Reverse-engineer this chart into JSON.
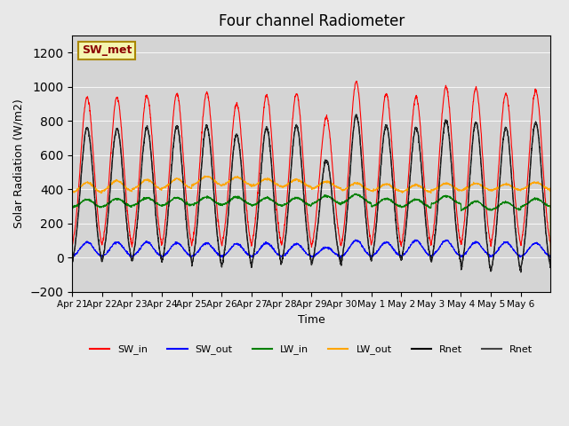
{
  "title": "Four channel Radiometer",
  "xlabel": "Time",
  "ylabel": "Solar Radiation (W/m2)",
  "ylim": [
    -200,
    1300
  ],
  "xlim_days": 15.5,
  "background_color": "#e8e8e8",
  "plot_bg_color": "#d8d8d8",
  "annotation_text": "SW_met",
  "annotation_bg": "#f5f5b0",
  "annotation_border": "#aa8800",
  "tick_labels": [
    "Apr 21",
    "Apr 22",
    "Apr 23",
    "Apr 24",
    "Apr 25",
    "Apr 26",
    "Apr 27",
    "Apr 28",
    "Apr 29",
    "Apr 30",
    "May 1",
    "May 2",
    "May 3",
    "May 4",
    "May 5",
    "May 6"
  ],
  "legend_entries": [
    {
      "label": "SW_in",
      "color": "red"
    },
    {
      "label": "SW_out",
      "color": "blue"
    },
    {
      "label": "LW_in",
      "color": "green"
    },
    {
      "label": "LW_out",
      "color": "orange"
    },
    {
      "label": "Rnet",
      "color": "black"
    },
    {
      "label": "Rnet",
      "color": "#444444"
    }
  ],
  "num_days": 16,
  "SW_in_peaks": [
    940,
    940,
    950,
    960,
    965,
    900,
    950,
    960,
    820,
    1030,
    960,
    940,
    1000,
    990,
    960,
    980
  ],
  "SW_out_peaks": [
    90,
    90,
    90,
    85,
    85,
    80,
    85,
    80,
    60,
    100,
    90,
    100,
    100,
    90,
    90,
    85
  ],
  "LW_in_base": [
    290,
    295,
    300,
    300,
    305,
    305,
    300,
    300,
    310,
    315,
    295,
    290,
    310,
    275,
    275,
    295
  ],
  "LW_in_day": [
    340,
    345,
    350,
    350,
    355,
    355,
    350,
    350,
    360,
    370,
    345,
    340,
    360,
    330,
    325,
    345
  ],
  "LW_out_base": [
    375,
    385,
    395,
    400,
    420,
    420,
    415,
    410,
    400,
    390,
    385,
    380,
    390,
    390,
    390,
    395
  ],
  "LW_out_day": [
    440,
    450,
    455,
    460,
    475,
    470,
    460,
    455,
    445,
    435,
    430,
    425,
    435,
    435,
    430,
    440
  ],
  "Rnet_peaks": [
    760,
    755,
    760,
    765,
    770,
    720,
    760,
    770,
    570,
    830,
    770,
    760,
    800,
    790,
    760,
    790
  ],
  "Rnet_night": [
    -90,
    -85,
    -90,
    -95,
    -115,
    -115,
    -110,
    -100,
    -95,
    -90,
    -85,
    -80,
    -100,
    -145,
    -150,
    -130
  ]
}
